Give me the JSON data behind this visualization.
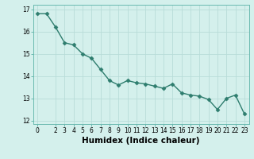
{
  "x": [
    0,
    1,
    2,
    3,
    4,
    5,
    6,
    7,
    8,
    9,
    10,
    11,
    12,
    13,
    14,
    15,
    16,
    17,
    18,
    19,
    20,
    21,
    22,
    23
  ],
  "y": [
    16.8,
    16.8,
    16.2,
    15.5,
    15.4,
    15.0,
    14.8,
    14.3,
    13.8,
    13.6,
    13.8,
    13.7,
    13.65,
    13.55,
    13.45,
    13.65,
    13.25,
    13.15,
    13.1,
    12.95,
    12.5,
    13.0,
    13.15,
    12.3
  ],
  "line_color": "#2e7d6e",
  "marker": "D",
  "marker_size": 2.5,
  "bg_color": "#d4f0ec",
  "grid_color": "#b8dcd8",
  "xlabel": "Humidex (Indice chaleur)",
  "xlim": [
    -0.5,
    23.5
  ],
  "ylim": [
    11.85,
    17.2
  ],
  "yticks": [
    12,
    13,
    14,
    15,
    16,
    17
  ],
  "xticks": [
    0,
    2,
    3,
    4,
    5,
    6,
    7,
    8,
    9,
    10,
    11,
    12,
    13,
    14,
    15,
    16,
    17,
    18,
    19,
    20,
    21,
    22,
    23
  ],
  "tick_label_size": 5.5,
  "xlabel_size": 7.5,
  "line_width": 1.0
}
